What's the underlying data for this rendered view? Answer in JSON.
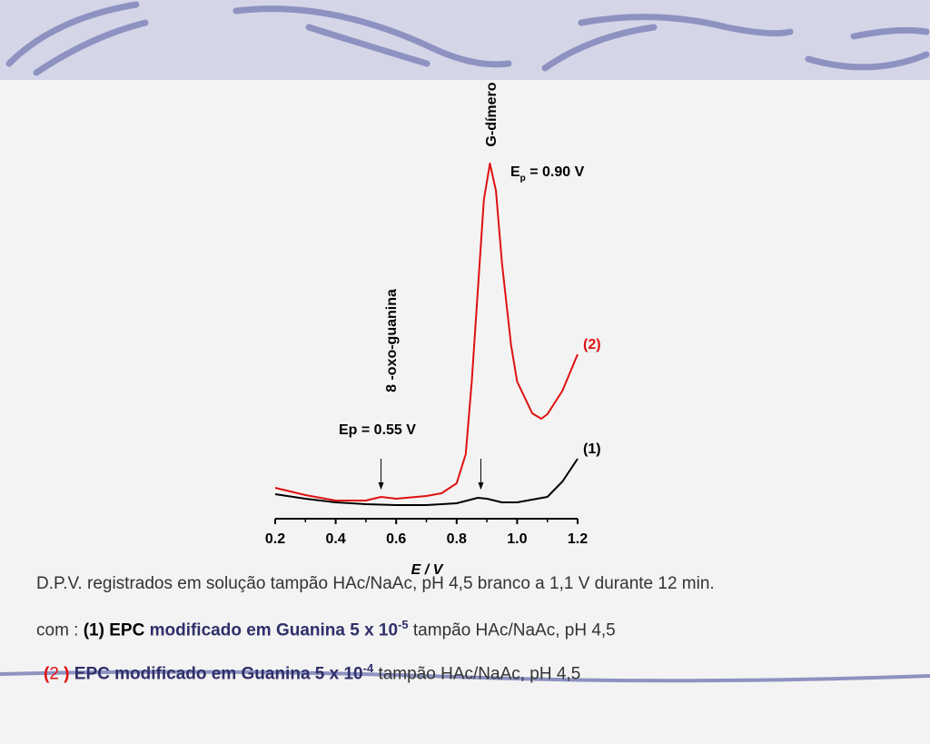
{
  "chart_data": {
    "type": "line",
    "xlabel": "E / V",
    "xlim": [
      0.2,
      1.2
    ],
    "ylim": [
      0,
      100
    ],
    "xticks": [
      0.2,
      0.4,
      0.6,
      0.8,
      {
        "value": 1,
        "label": "1.0"
      },
      1.2
    ],
    "xminor": [
      0.3,
      0.5,
      0.7,
      0.9,
      1.1
    ],
    "series": [
      {
        "name": "(1)",
        "color": "#000000",
        "x": [
          0.2,
          0.3,
          0.4,
          0.5,
          0.6,
          0.7,
          0.8,
          0.87,
          0.9,
          0.95,
          1.0,
          1.1,
          1.15,
          1.2
        ],
        "values": [
          6.5,
          5.25,
          4.25,
          3.75,
          3.5,
          3.5,
          4,
          5.5,
          5.25,
          4.25,
          4.25,
          5.75,
          10,
          16.25
        ]
      },
      {
        "name": "(2)",
        "color": "#e01010",
        "x": [
          0.2,
          0.25,
          0.3,
          0.4,
          0.5,
          0.55,
          0.6,
          0.7,
          0.75,
          0.8,
          0.83,
          0.85,
          0.87,
          0.89,
          0.91,
          0.93,
          0.95,
          0.98,
          1.0,
          1.05,
          1.08,
          1.1,
          1.15,
          1.2
        ],
        "values": [
          8.25,
          7.25,
          6.25,
          4.75,
          4.75,
          5.75,
          5.25,
          6,
          6.75,
          9.5,
          17.5,
          37.5,
          62.5,
          87.5,
          97.5,
          90,
          70,
          47.5,
          37.5,
          28.75,
          27.25,
          28.5,
          35,
          45
        ]
      }
    ],
    "arrows": [
      0.55,
      0.88
    ],
    "annotations": {
      "g_dimer": "G-dímero",
      "ep090": {
        "main": "E",
        "sub": "p",
        "rest": " = 0.90 V"
      },
      "oxo": "8 -oxo-guanina",
      "ep055": "Ep = 0.55 V"
    }
  },
  "caption": {
    "line1": "D.P.V. registrados em solução tampão HAc/NaAc, pH 4,5 branco a 1,1 V durante 12 min.",
    "line2": [
      "com : ",
      "(1) EPC",
      " modificado em Guanina 5 x 10",
      "-5",
      " tampão HAc/NaAc, pH 4,5"
    ],
    "line3": [
      "(",
      "2",
      " )",
      " EPC modificado em Guanina 5 x 10",
      "-4",
      " tampão HAc/NaAc, pH 4,5"
    ]
  }
}
